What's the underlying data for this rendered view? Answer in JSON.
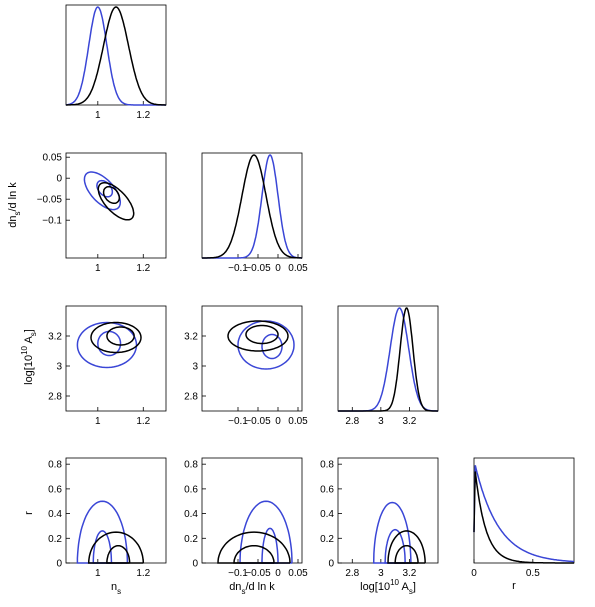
{
  "colors": {
    "series_black": "#000000",
    "series_blue": "#3a46d6"
  },
  "chart_data": {
    "type": "triangle-plot",
    "parameters": [
      "n_s",
      "dn_s/d ln k",
      "log[10^10 A_s]",
      "r"
    ],
    "labels": {
      "ns": {
        "base": "n",
        "sub": "s",
        "tail": ""
      },
      "dns": {
        "base": "dn",
        "sub": "s",
        "tail": "/d ln k"
      },
      "logA": {
        "base": "log[10",
        "sup": "10",
        "mid": " A",
        "sub": "s",
        "tail": "]"
      },
      "r": {
        "text": "r"
      }
    },
    "ranges": {
      "ns": [
        0.86,
        1.3
      ],
      "dns": [
        -0.19,
        0.06
      ],
      "logA": [
        2.7,
        3.4
      ],
      "r": [
        0,
        0.85
      ]
    },
    "ticks": {
      "ns": [
        "1",
        "1.2"
      ],
      "ns_vals": [
        1,
        1.2
      ],
      "dns": [
        "0.05",
        "0",
        "−0.05",
        "−0.1"
      ],
      "dns_vals": [
        0.05,
        0,
        -0.05,
        -0.1
      ],
      "dns_x": [
        "−0.1",
        "−0.05",
        "0",
        "0.05"
      ],
      "dns_x_vals": [
        -0.1,
        -0.05,
        0,
        0.05
      ],
      "logA": [
        "3.2",
        "3",
        "2.8"
      ],
      "logA_vals": [
        3.2,
        3,
        2.8
      ],
      "logA_x": [
        "2.8",
        "3",
        "3.2"
      ],
      "logA_x_vals": [
        2.8,
        3,
        3.2
      ],
      "r": [
        "0.8",
        "0.6",
        "0.4",
        "0.2",
        "0"
      ],
      "r_vals": [
        0.8,
        0.6,
        0.4,
        0.2,
        0
      ],
      "r_x": [
        "0",
        "0.5"
      ],
      "r_x_vals": [
        0,
        0.5
      ]
    },
    "marginals": {
      "ns": {
        "black": {
          "mean": 1.08,
          "sd": 0.055
        },
        "blue": {
          "mean": 1.0,
          "sd": 0.04
        }
      },
      "dns": {
        "black": {
          "mean": -0.06,
          "sd": 0.03
        },
        "blue": {
          "mean": -0.02,
          "sd": 0.02
        }
      },
      "logA": {
        "black": {
          "mean": 3.18,
          "sd": 0.045
        },
        "blue": {
          "mean": 3.13,
          "sd": 0.065
        }
      },
      "r": {
        "black": {
          "scale": 0.09
        },
        "blue": {
          "scale": 0.2
        }
      }
    },
    "contours": {
      "dns_vs_ns": {
        "black": [
          {
            "cx": 1.06,
            "cy": -0.04,
            "rx": 0.04,
            "ry": 0.016,
            "rot": -45
          },
          {
            "cx": 1.08,
            "cy": -0.055,
            "rx": 0.1,
            "ry": 0.026,
            "rot": -45
          }
        ],
        "blue": [
          {
            "cx": 1.03,
            "cy": -0.025,
            "rx": 0.04,
            "ry": 0.015,
            "rot": -45
          },
          {
            "cx": 1.02,
            "cy": -0.03,
            "rx": 0.1,
            "ry": 0.028,
            "rot": -45
          }
        ]
      },
      "logA_vs_ns": {
        "black": [
          {
            "cx": 1.1,
            "cy": 3.2,
            "rx": 0.06,
            "ry": 0.06,
            "rot": 0
          },
          {
            "cx": 1.08,
            "cy": 3.19,
            "rx": 0.11,
            "ry": 0.1,
            "rot": 0
          }
        ],
        "blue": [
          {
            "cx": 1.05,
            "cy": 3.15,
            "rx": 0.05,
            "ry": 0.08,
            "rot": 0
          },
          {
            "cx": 1.04,
            "cy": 3.14,
            "rx": 0.13,
            "ry": 0.15,
            "rot": 0
          }
        ]
      },
      "logA_vs_dns": {
        "black": [
          {
            "cx": -0.04,
            "cy": 3.21,
            "rx": 0.04,
            "ry": 0.06,
            "rot": 0
          },
          {
            "cx": -0.05,
            "cy": 3.2,
            "rx": 0.075,
            "ry": 0.1,
            "rot": 0
          }
        ],
        "blue": [
          {
            "cx": -0.015,
            "cy": 3.13,
            "rx": 0.025,
            "ry": 0.08,
            "rot": 0
          },
          {
            "cx": -0.03,
            "cy": 3.14,
            "rx": 0.07,
            "ry": 0.16,
            "rot": 0
          }
        ]
      },
      "r_vs_ns": {
        "black": [
          {
            "cx": 1.09,
            "cy": 0.0,
            "rx": 0.05,
            "ry": 0.14,
            "rot": 0
          },
          {
            "cx": 1.08,
            "cy": 0.0,
            "rx": 0.12,
            "ry": 0.25,
            "rot": 0
          }
        ],
        "blue": [
          {
            "cx": 1.02,
            "cy": 0.0,
            "rx": 0.04,
            "ry": 0.26,
            "rot": 0
          },
          {
            "cx": 1.02,
            "cy": 0.0,
            "rx": 0.11,
            "ry": 0.5,
            "rot": 0
          }
        ]
      },
      "r_vs_dns": {
        "black": [
          {
            "cx": -0.06,
            "cy": 0.0,
            "rx": 0.05,
            "ry": 0.14,
            "rot": 0
          },
          {
            "cx": -0.06,
            "cy": 0.0,
            "rx": 0.09,
            "ry": 0.25,
            "rot": 0
          }
        ],
        "blue": [
          {
            "cx": -0.02,
            "cy": 0.0,
            "rx": 0.02,
            "ry": 0.28,
            "rot": 0
          },
          {
            "cx": -0.03,
            "cy": 0.0,
            "rx": 0.065,
            "ry": 0.5,
            "rot": 0
          }
        ]
      },
      "r_vs_logA": {
        "black": [
          {
            "cx": 3.18,
            "cy": 0.0,
            "rx": 0.08,
            "ry": 0.14,
            "rot": 0
          },
          {
            "cx": 3.18,
            "cy": 0.0,
            "rx": 0.13,
            "ry": 0.26,
            "rot": 0
          }
        ],
        "blue": [
          {
            "cx": 3.1,
            "cy": 0.0,
            "rx": 0.07,
            "ry": 0.27,
            "rot": 0
          },
          {
            "cx": 3.08,
            "cy": 0.0,
            "rx": 0.13,
            "ry": 0.49,
            "rot": 0
          }
        ]
      }
    }
  }
}
